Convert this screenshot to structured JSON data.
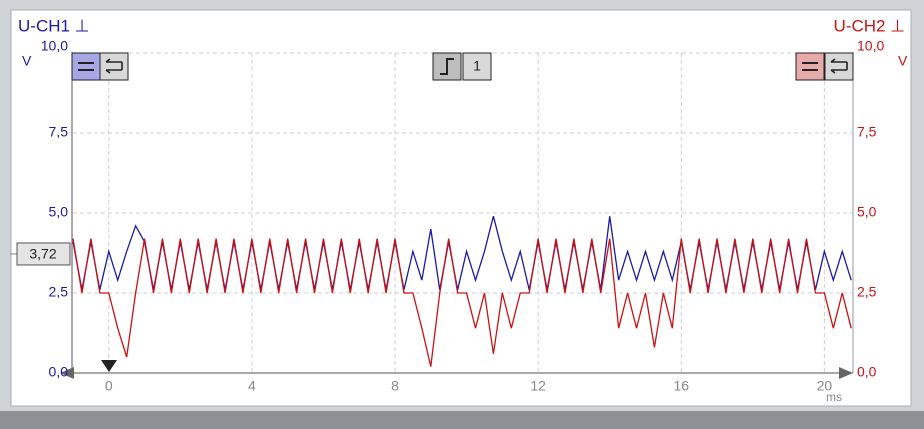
{
  "chart_data": {
    "type": "line",
    "left_title": "U-CH1 ⊥",
    "right_title": "U-CH2 ⊥",
    "left_unit": "V",
    "right_unit": "V",
    "x_unit": "ms",
    "trigger_channel": "1",
    "cursor": {
      "value": 3.72,
      "label": "3,72"
    },
    "grid": true,
    "xlim": [
      -1,
      20.8
    ],
    "xticks": [
      0,
      4,
      8,
      12,
      16,
      20
    ],
    "ylim": [
      0,
      10
    ],
    "yticks": [
      {
        "value": 0,
        "label": "0,0"
      },
      {
        "value": 2.5,
        "label": "2,5"
      },
      {
        "value": 5,
        "label": "5,0"
      },
      {
        "value": 7.5,
        "label": "7,5"
      },
      {
        "value": 10,
        "label": "10,0"
      }
    ],
    "y2lim": [
      0,
      10
    ],
    "y2ticks": [
      {
        "value": 0,
        "label": "0,0"
      },
      {
        "value": 2.5,
        "label": "2,5"
      },
      {
        "value": 5,
        "label": "5,0"
      },
      {
        "value": 7.5,
        "label": "7,5"
      },
      {
        "value": 10,
        "label": "10,0"
      }
    ],
    "x": [
      -1,
      -0.75,
      -0.5,
      -0.25,
      0,
      0.25,
      0.5,
      0.75,
      1,
      1.25,
      1.5,
      1.75,
      2,
      2.25,
      2.5,
      2.75,
      3,
      3.25,
      3.5,
      3.75,
      4,
      4.25,
      4.5,
      4.75,
      5,
      5.25,
      5.5,
      5.75,
      6,
      6.25,
      6.5,
      6.75,
      7,
      7.25,
      7.5,
      7.75,
      8,
      8.25,
      8.5,
      8.75,
      9,
      9.25,
      9.5,
      9.75,
      10,
      10.25,
      10.5,
      10.75,
      11,
      11.25,
      11.5,
      11.75,
      12,
      12.25,
      12.5,
      12.75,
      13,
      13.25,
      13.5,
      13.75,
      14,
      14.25,
      14.5,
      14.75,
      15,
      15.25,
      15.5,
      15.75,
      16,
      16.25,
      16.5,
      16.75,
      17,
      17.25,
      17.5,
      17.75,
      18,
      18.25,
      18.5,
      18.75,
      19,
      19.25,
      19.5,
      19.75,
      20,
      20.25,
      20.5,
      20.75
    ],
    "series": [
      {
        "color": "#1a1aa6",
        "values": [
          4.1,
          2.6,
          4.1,
          2.6,
          3.8,
          2.9,
          3.8,
          4.6,
          4.1,
          2.6,
          4.1,
          2.6,
          4.1,
          2.6,
          4.1,
          2.6,
          4.1,
          2.6,
          4.1,
          2.6,
          4.1,
          2.6,
          4.1,
          2.6,
          4.1,
          2.6,
          4.1,
          2.6,
          4.1,
          2.6,
          4.1,
          2.6,
          4.1,
          2.6,
          4.1,
          2.6,
          4.1,
          2.6,
          3.8,
          2.9,
          4.5,
          2.6,
          4.1,
          2.6,
          3.8,
          2.9,
          3.8,
          4.9,
          3.8,
          2.9,
          3.8,
          2.6,
          4.1,
          2.6,
          4.1,
          2.6,
          4.1,
          2.6,
          4.1,
          2.6,
          4.9,
          2.9,
          3.8,
          2.9,
          3.8,
          2.9,
          3.8,
          2.9,
          4.1,
          2.6,
          4.1,
          2.6,
          4.1,
          2.6,
          4.1,
          2.6,
          4.1,
          2.6,
          4.1,
          2.6,
          4.1,
          2.6,
          4.1,
          2.6,
          3.8,
          2.9,
          3.8,
          2.9
        ]
      },
      {
        "color": "#cc1111",
        "axis": "y2",
        "values": [
          4.2,
          2.5,
          4.2,
          2.5,
          2.5,
          1.4,
          0.5,
          2.5,
          4.2,
          2.5,
          4.2,
          2.5,
          4.2,
          2.5,
          4.2,
          2.5,
          4.2,
          2.5,
          4.2,
          2.5,
          4.2,
          2.5,
          4.2,
          2.5,
          4.2,
          2.5,
          4.2,
          2.5,
          4.2,
          2.5,
          4.2,
          2.5,
          4.2,
          2.5,
          4.2,
          2.5,
          4.2,
          2.5,
          2.5,
          1.4,
          0.2,
          2.5,
          4.2,
          2.5,
          2.5,
          1.4,
          2.5,
          0.6,
          2.5,
          1.4,
          2.5,
          2.5,
          4.2,
          2.5,
          4.2,
          2.5,
          4.2,
          2.5,
          4.2,
          2.5,
          4.2,
          1.4,
          2.5,
          1.4,
          2.5,
          0.8,
          2.5,
          1.4,
          4.2,
          2.5,
          4.2,
          2.5,
          4.2,
          2.5,
          4.2,
          2.5,
          4.2,
          2.5,
          4.2,
          2.5,
          4.2,
          2.5,
          4.2,
          2.5,
          2.5,
          1.4,
          2.5,
          1.4
        ]
      }
    ]
  }
}
